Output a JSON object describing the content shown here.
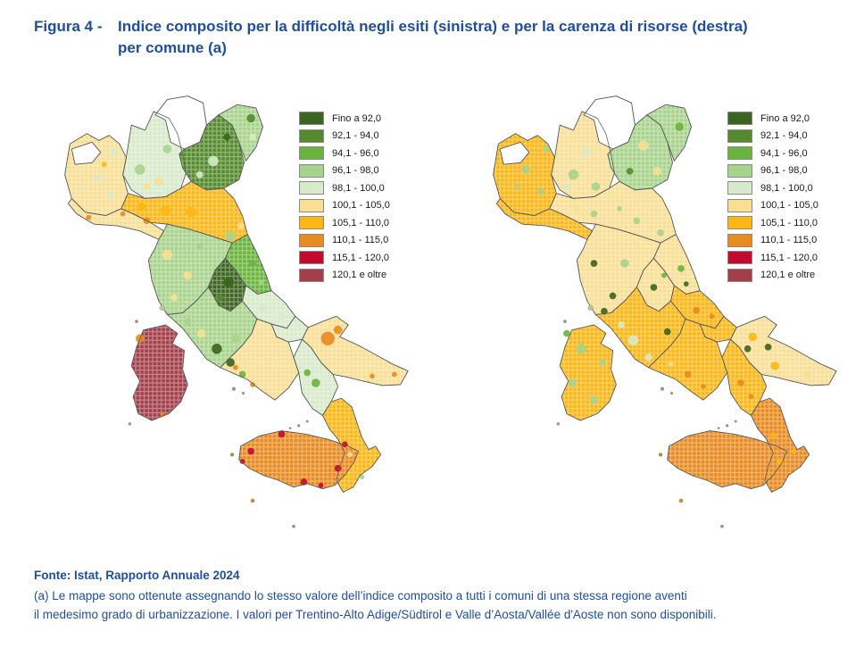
{
  "figure": {
    "label": "Figura 4 -",
    "title": "Indice composito per la difficoltà negli esiti (sinistra) e per la carenza di risorse (destra) per comune (a)",
    "title_line1": "Indice composito per la difficoltà negli esiti (sinistra) e per la carenza di risorse (destra)",
    "title_line2": "per comune (a)",
    "title_color": "#1f4e9c"
  },
  "source": "Fonte: Istat, Rapporto Annuale 2024",
  "footnote": {
    "line1": "(a) Le mappe sono ottenute assegnando lo stesso valore dell’indice composito a tutti i comuni di una stessa regione aventi",
    "line2": "il medesimo grado di urbanizzazione. I valori per Trentino-Alto Adige/Südtirol e Valle d’Aosta/Vallée d'Aoste non sono disponibili."
  },
  "legend_classes": [
    {
      "label": "Fino a 92,0",
      "color": "#3a641f"
    },
    {
      "label": "92,1 - 94,0",
      "color": "#548a2d"
    },
    {
      "label": "94,1 - 96,0",
      "color": "#69b43c"
    },
    {
      "label": "96,1 - 98,0",
      "color": "#a8d38c"
    },
    {
      "label": "98,1 - 100,0",
      "color": "#d8eaca"
    },
    {
      "label": "100,1 - 105,0",
      "color": "#f8df94"
    },
    {
      "label": "105,1 - 110,0",
      "color": "#fcb715"
    },
    {
      "label": "110,1 - 115,0",
      "color": "#e88b20"
    },
    {
      "label": "115,1 - 120,0",
      "color": "#c10b2e"
    },
    {
      "label": "120,1 e oltre",
      "color": "#a33f4a"
    }
  ],
  "no_data_value": "non disponibile",
  "no_data_color": "#ffffff",
  "chart_data": [
    {
      "type": "heatmap",
      "subtype": "choropleth-map-italy-comuni",
      "title": "Indice composito per la difficoltà negli esiti (sinistra)",
      "legend_position": "top-right",
      "legend": [
        "Fino a 92,0",
        "92,1 - 94,0",
        "94,1 - 96,0",
        "96,1 - 98,0",
        "98,1 - 100,0",
        "100,1 - 105,0",
        "105,1 - 110,0",
        "110,1 - 115,0",
        "115,1 - 120,0",
        "120,1 e oltre"
      ],
      "no_data_regions": [
        "Trentino-Alto Adige/Südtirol",
        "Valle d’Aosta/Vallée d'Aoste"
      ],
      "region_dominant_class": {
        "Piemonte": "100,1 - 105,0",
        "Valle d’Aosta/Vallée d'Aoste": "non disponibile",
        "Liguria": "100,1 - 105,0",
        "Lombardia": "98,1 - 100,0",
        "Trentino-Alto Adige/Südtirol": "non disponibile",
        "Veneto": "92,1 - 94,0",
        "Friuli-Venezia Giulia": "96,1 - 98,0",
        "Emilia-Romagna": "105,1 - 110,0",
        "Toscana": "96,1 - 98,0",
        "Umbria": "Fino a 92,0",
        "Marche": "94,1 - 96,0",
        "Lazio": "96,1 - 98,0",
        "Abruzzo": "98,1 - 100,0",
        "Molise": "98,1 - 100,0",
        "Campania": "100,1 - 105,0",
        "Puglia": "100,1 - 105,0",
        "Basilicata": "98,1 - 100,0",
        "Calabria": "105,1 - 110,0",
        "Sicilia": "110,1 - 115,0",
        "Sardegna": "120,1 e oltre"
      }
    },
    {
      "type": "heatmap",
      "subtype": "choropleth-map-italy-comuni",
      "title": "Indice composito per la carenza di risorse (destra)",
      "legend_position": "top-right",
      "legend": [
        "Fino a 92,0",
        "92,1 - 94,0",
        "94,1 - 96,0",
        "96,1 - 98,0",
        "98,1 - 100,0",
        "100,1 - 105,0",
        "105,1 - 110,0",
        "110,1 - 115,0",
        "115,1 - 120,0",
        "120,1 e oltre"
      ],
      "no_data_regions": [
        "Trentino-Alto Adige/Südtirol",
        "Valle d’Aosta/Vallée d'Aoste"
      ],
      "region_dominant_class": {
        "Piemonte": "105,1 - 110,0",
        "Valle d’Aosta/Vallée d'Aoste": "non disponibile",
        "Liguria": "105,1 - 110,0",
        "Lombardia": "100,1 - 105,0",
        "Trentino-Alto Adige/Südtirol": "non disponibile",
        "Veneto": "96,1 - 98,0",
        "Friuli-Venezia Giulia": "96,1 - 98,0",
        "Emilia-Romagna": "100,1 - 105,0",
        "Toscana": "100,1 - 105,0",
        "Umbria": "100,1 - 105,0",
        "Marche": "100,1 - 105,0",
        "Lazio": "105,1 - 110,0",
        "Abruzzo": "105,1 - 110,0",
        "Molise": "105,1 - 110,0",
        "Campania": "105,1 - 110,0",
        "Puglia": "100,1 - 105,0",
        "Basilicata": "105,1 - 110,0",
        "Calabria": "110,1 - 115,0",
        "Sicilia": "110,1 - 115,0",
        "Sardegna": "105,1 - 110,0"
      }
    }
  ]
}
